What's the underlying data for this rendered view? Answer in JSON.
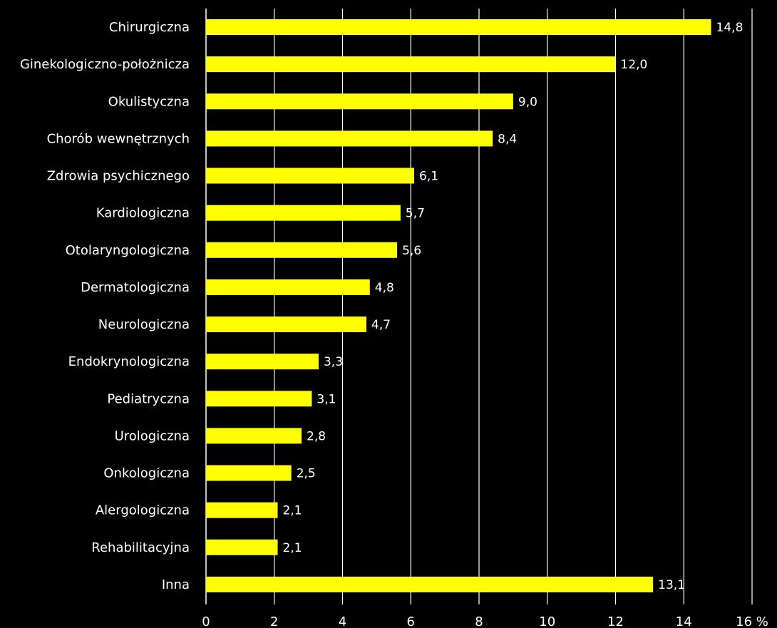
{
  "chart_data": {
    "type": "bar",
    "orientation": "horizontal",
    "categories": [
      "Chirurgiczna",
      "Ginekologiczno-położnicza",
      "Okulistyczna",
      "Chorób wewnętrznych",
      "Zdrowia psychicznego",
      "Kardiologiczna",
      "Otolaryngologiczna",
      "Dermatologiczna",
      "Neurologiczna",
      "Endokrynologiczna",
      "Pediatryczna",
      "Urologiczna",
      "Onkologiczna",
      "Alergologiczna",
      "Rehabilitacyjna",
      "Inna"
    ],
    "values": [
      14.8,
      12.0,
      9.0,
      8.4,
      6.1,
      5.7,
      5.6,
      4.8,
      4.7,
      3.3,
      3.1,
      2.8,
      2.5,
      2.1,
      2.1,
      13.1
    ],
    "value_labels": [
      "14,8",
      "12,0",
      "9,0",
      "8,4",
      "6,1",
      "5,7",
      "5,6",
      "4,8",
      "4,7",
      "3,3",
      "3,1",
      "2,8",
      "2,5",
      "2,1",
      "2,1",
      "13,1"
    ],
    "x_ticks": [
      "0",
      "2",
      "4",
      "6",
      "8",
      "10",
      "12",
      "14",
      "16 %"
    ],
    "xlim": [
      0,
      16
    ],
    "grid": true,
    "colors": {
      "bar": "#ffff00",
      "background": "#000000",
      "text": "#ffffff",
      "grid": "#ffffff"
    }
  }
}
